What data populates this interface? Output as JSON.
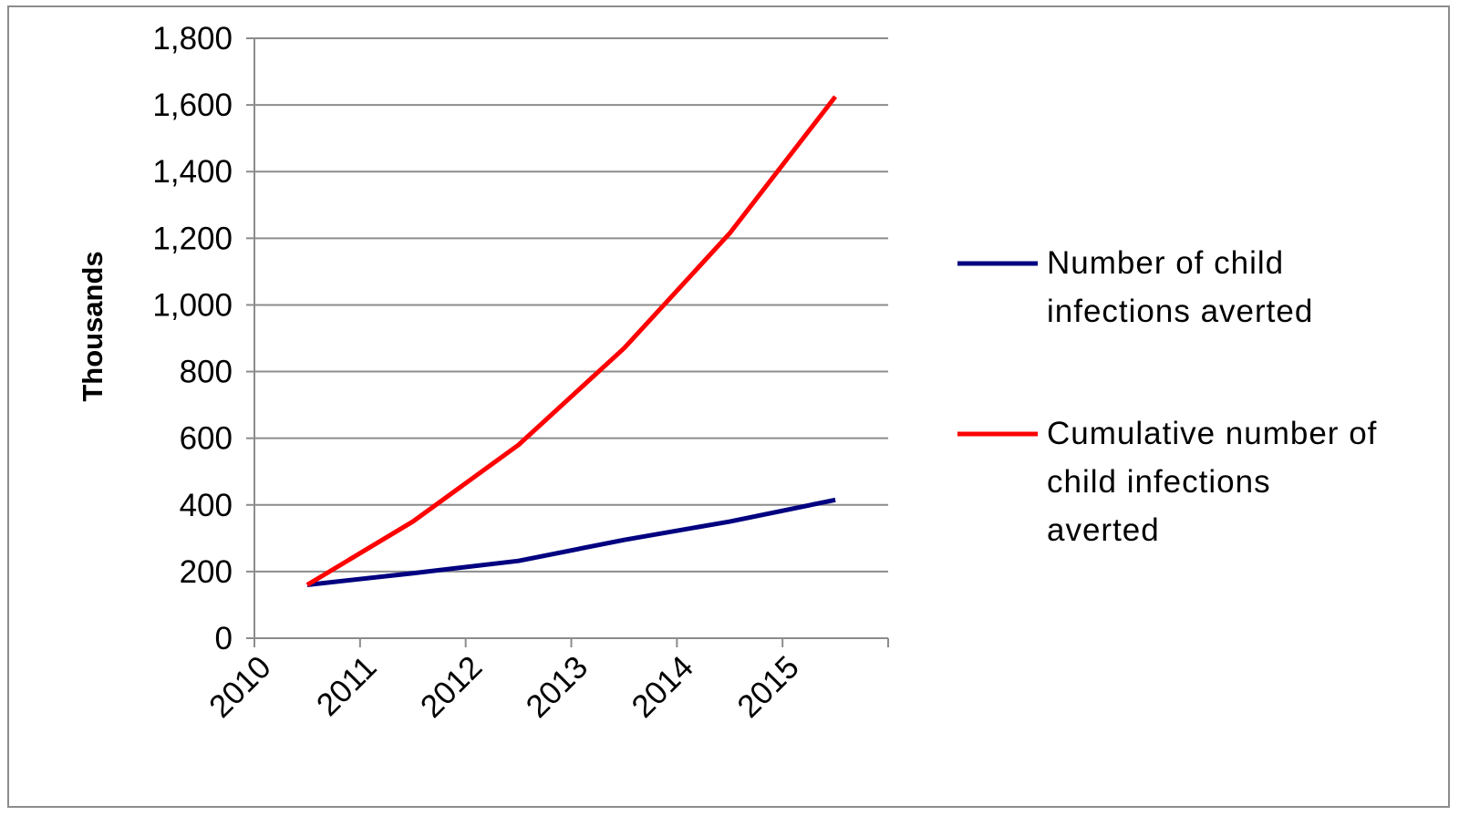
{
  "chart_data": {
    "type": "line",
    "title": "",
    "xlabel": "",
    "ylabel": "Thousands",
    "ylim": [
      0,
      1800
    ],
    "y_ticks": [
      "0",
      "200",
      "400",
      "600",
      "800",
      "1,000",
      "1,200",
      "1,400",
      "1,600",
      "1,800"
    ],
    "categories": [
      "2010",
      "2011",
      "2012",
      "2013",
      "2014",
      "2015"
    ],
    "grid": "horizontal",
    "legend_position": "right",
    "series": [
      {
        "name": "Number of child infections averted",
        "name_lines": [
          "Number of child",
          "infections averted"
        ],
        "color": "#000080",
        "values": [
          160,
          195,
          232,
          295,
          350,
          415
        ]
      },
      {
        "name": "Cumulative number of child infections averted",
        "name_lines": [
          "Cumulative number of",
          "child infections",
          "averted"
        ],
        "color": "#ff0000",
        "values": [
          160,
          350,
          580,
          870,
          1215,
          1625
        ]
      }
    ]
  }
}
